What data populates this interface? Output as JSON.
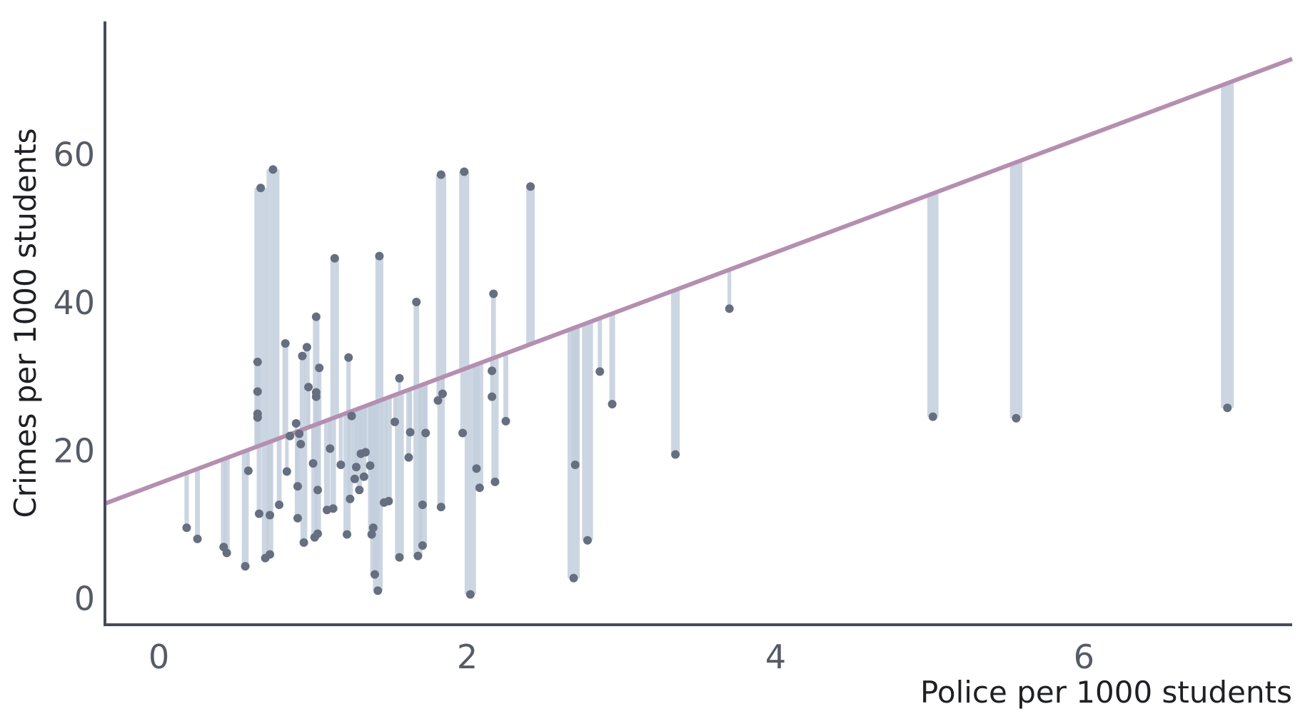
{
  "chart_data": {
    "type": "scatter",
    "title": "",
    "xlabel": "Police per 1000 students",
    "ylabel": "Crimes per 1000 students",
    "xlim": [
      -0.35,
      7.35
    ],
    "ylim": [
      -3.5,
      78
    ],
    "x_ticks": [
      0,
      2,
      4,
      6
    ],
    "x_tick_labels": [
      "0",
      "2",
      "4",
      "6"
    ],
    "y_ticks": [
      0,
      20,
      40,
      60
    ],
    "y_tick_labels": [
      "0",
      "20",
      "40",
      "60"
    ],
    "grid": false,
    "legend": "none",
    "trend_line": {
      "intercept": 15.6,
      "slope": 7.8
    },
    "colors": {
      "axis": "#454b5a",
      "point": "#666f80",
      "residual": "#c3cfdd",
      "fit_line": "#b48fb0"
    },
    "points": [
      [
        0.18,
        9.6
      ],
      [
        0.25,
        8.1
      ],
      [
        0.42,
        7.0
      ],
      [
        0.44,
        6.2
      ],
      [
        0.56,
        4.4
      ],
      [
        0.58,
        17.3
      ],
      [
        0.64,
        32.0
      ],
      [
        0.64,
        28.0
      ],
      [
        0.64,
        25.0
      ],
      [
        0.64,
        24.5
      ],
      [
        0.65,
        11.5
      ],
      [
        0.66,
        55.5
      ],
      [
        0.69,
        5.5
      ],
      [
        0.72,
        6.0
      ],
      [
        0.72,
        11.3
      ],
      [
        0.74,
        58.0
      ],
      [
        0.78,
        12.7
      ],
      [
        0.82,
        34.5
      ],
      [
        0.83,
        17.2
      ],
      [
        0.85,
        22.0
      ],
      [
        0.89,
        23.7
      ],
      [
        0.9,
        15.2
      ],
      [
        0.9,
        10.9
      ],
      [
        0.91,
        22.3
      ],
      [
        0.92,
        20.9
      ],
      [
        0.93,
        32.8
      ],
      [
        0.94,
        7.6
      ],
      [
        0.96,
        34.0
      ],
      [
        0.97,
        28.6
      ],
      [
        1.0,
        18.3
      ],
      [
        1.01,
        8.3
      ],
      [
        1.02,
        38.1
      ],
      [
        1.02,
        27.9
      ],
      [
        1.02,
        27.3
      ],
      [
        1.03,
        14.7
      ],
      [
        1.03,
        8.8
      ],
      [
        1.04,
        31.2
      ],
      [
        1.09,
        12.0
      ],
      [
        1.11,
        20.3
      ],
      [
        1.13,
        12.2
      ],
      [
        1.14,
        46.0
      ],
      [
        1.18,
        18.1
      ],
      [
        1.22,
        8.7
      ],
      [
        1.23,
        32.6
      ],
      [
        1.24,
        13.5
      ],
      [
        1.25,
        24.7
      ],
      [
        1.27,
        16.2
      ],
      [
        1.28,
        17.8
      ],
      [
        1.3,
        14.7
      ],
      [
        1.31,
        19.6
      ],
      [
        1.33,
        16.5
      ],
      [
        1.34,
        19.8
      ],
      [
        1.37,
        18.0
      ],
      [
        1.38,
        8.7
      ],
      [
        1.39,
        9.6
      ],
      [
        1.4,
        3.3
      ],
      [
        1.42,
        1.1
      ],
      [
        1.43,
        46.3
      ],
      [
        1.46,
        13.0
      ],
      [
        1.49,
        13.2
      ],
      [
        1.53,
        23.9
      ],
      [
        1.56,
        29.8
      ],
      [
        1.56,
        5.6
      ],
      [
        1.62,
        19.1
      ],
      [
        1.63,
        22.5
      ],
      [
        1.67,
        40.1
      ],
      [
        1.68,
        5.8
      ],
      [
        1.71,
        7.2
      ],
      [
        1.71,
        12.7
      ],
      [
        1.73,
        22.4
      ],
      [
        1.81,
        26.8
      ],
      [
        1.83,
        57.3
      ],
      [
        1.83,
        12.4
      ],
      [
        1.84,
        27.7
      ],
      [
        1.97,
        22.4
      ],
      [
        1.98,
        57.7
      ],
      [
        2.02,
        0.6
      ],
      [
        2.06,
        17.6
      ],
      [
        2.08,
        15.0
      ],
      [
        2.16,
        27.3
      ],
      [
        2.16,
        30.8
      ],
      [
        2.17,
        41.2
      ],
      [
        2.18,
        15.8
      ],
      [
        2.25,
        24.0
      ],
      [
        2.41,
        55.7
      ],
      [
        2.69,
        2.8
      ],
      [
        2.7,
        18.1
      ],
      [
        2.78,
        7.9
      ],
      [
        2.86,
        30.7
      ],
      [
        2.94,
        26.3
      ],
      [
        3.35,
        19.5
      ],
      [
        3.7,
        39.2
      ],
      [
        5.02,
        24.6
      ],
      [
        5.56,
        24.4
      ],
      [
        6.93,
        25.8
      ]
    ]
  }
}
